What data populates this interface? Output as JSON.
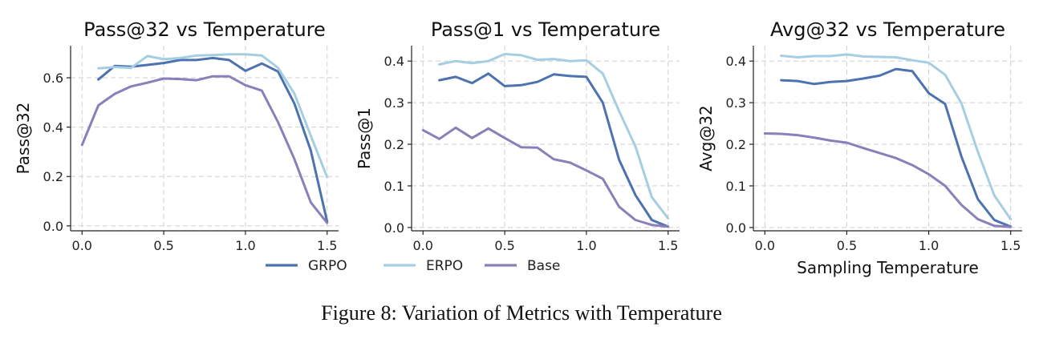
{
  "colors": {
    "GRPO": "#4c72b0",
    "ERPO": "#a6cee3",
    "Base": "#8a7fb8"
  },
  "legend": {
    "items": [
      "GRPO",
      "ERPO",
      "Base"
    ]
  },
  "caption": "Figure 8: Variation of Metrics with Temperature",
  "chart_data": [
    {
      "type": "line",
      "title": "Pass@32 vs Temperature",
      "xlabel": "",
      "ylabel": "Pass@32",
      "xlim": [
        -0.07,
        1.57
      ],
      "ylim": [
        -0.02,
        0.73
      ],
      "xticks": [
        0.0,
        0.5,
        1.0,
        1.5
      ],
      "xtick_labels": [
        "0.0",
        "0.5",
        "1.0",
        "1.5"
      ],
      "yticks": [
        0.0,
        0.2,
        0.4,
        0.6
      ],
      "ytick_labels": [
        "0.0",
        "0.2",
        "0.4",
        "0.6"
      ],
      "grid": true,
      "series": [
        {
          "name": "GRPO",
          "x": [
            0.1,
            0.2,
            0.3,
            0.4,
            0.5,
            0.6,
            0.7,
            0.8,
            0.9,
            1.0,
            1.1,
            1.2,
            1.3,
            1.4,
            1.5
          ],
          "y": [
            0.593,
            0.648,
            0.645,
            0.652,
            0.66,
            0.672,
            0.672,
            0.68,
            0.672,
            0.628,
            0.658,
            0.625,
            0.495,
            0.305,
            0.018
          ]
        },
        {
          "name": "ERPO",
          "x": [
            0.1,
            0.2,
            0.3,
            0.4,
            0.5,
            0.6,
            0.7,
            0.8,
            0.9,
            1.0,
            1.1,
            1.2,
            1.3,
            1.4,
            1.5
          ],
          "y": [
            0.638,
            0.643,
            0.64,
            0.688,
            0.675,
            0.68,
            0.69,
            0.692,
            0.695,
            0.695,
            0.69,
            0.64,
            0.535,
            0.365,
            0.198
          ]
        },
        {
          "name": "Base",
          "x": [
            0.0,
            0.1,
            0.2,
            0.3,
            0.4,
            0.5,
            0.6,
            0.7,
            0.8,
            0.9,
            1.0,
            1.1,
            1.2,
            1.3,
            1.4,
            1.5
          ],
          "y": [
            0.328,
            0.488,
            0.535,
            0.565,
            0.58,
            0.597,
            0.595,
            0.59,
            0.606,
            0.606,
            0.57,
            0.548,
            0.42,
            0.27,
            0.095,
            0.012
          ]
        }
      ]
    },
    {
      "type": "line",
      "title": "Pass@1 vs Temperature",
      "xlabel": "",
      "ylabel": "Pass@1",
      "xlim": [
        -0.07,
        1.57
      ],
      "ylim": [
        -0.008,
        0.437
      ],
      "xticks": [
        0.0,
        0.5,
        1.0,
        1.5
      ],
      "xtick_labels": [
        "0.0",
        "0.5",
        "1.0",
        "1.5"
      ],
      "yticks": [
        0.0,
        0.1,
        0.2,
        0.3,
        0.4
      ],
      "ytick_labels": [
        "0.0",
        "0.1",
        "0.2",
        "0.3",
        "0.4"
      ],
      "grid": true,
      "series": [
        {
          "name": "GRPO",
          "x": [
            0.1,
            0.2,
            0.3,
            0.4,
            0.5,
            0.6,
            0.7,
            0.8,
            0.9,
            1.0,
            1.1,
            1.2,
            1.3,
            1.4,
            1.5
          ],
          "y": [
            0.354,
            0.362,
            0.347,
            0.37,
            0.34,
            0.342,
            0.35,
            0.368,
            0.364,
            0.362,
            0.3,
            0.163,
            0.078,
            0.018,
            0.002
          ]
        },
        {
          "name": "ERPO",
          "x": [
            0.1,
            0.2,
            0.3,
            0.4,
            0.5,
            0.6,
            0.7,
            0.8,
            0.9,
            1.0,
            1.1,
            1.2,
            1.3,
            1.4,
            1.5
          ],
          "y": [
            0.392,
            0.4,
            0.395,
            0.4,
            0.417,
            0.414,
            0.403,
            0.405,
            0.4,
            0.402,
            0.37,
            0.28,
            0.195,
            0.073,
            0.022
          ]
        },
        {
          "name": "Base",
          "x": [
            0.0,
            0.1,
            0.2,
            0.3,
            0.4,
            0.5,
            0.6,
            0.7,
            0.8,
            0.9,
            1.0,
            1.1,
            1.2,
            1.3,
            1.4,
            1.5
          ],
          "y": [
            0.234,
            0.213,
            0.24,
            0.215,
            0.238,
            0.215,
            0.193,
            0.192,
            0.164,
            0.156,
            0.137,
            0.117,
            0.05,
            0.018,
            0.006,
            0.002
          ]
        }
      ]
    },
    {
      "type": "line",
      "title": "Avg@32 vs Temperature",
      "xlabel": "Sampling Temperature",
      "ylabel": "Avg@32",
      "xlim": [
        -0.07,
        1.57
      ],
      "ylim": [
        -0.008,
        0.437
      ],
      "xticks": [
        0.0,
        0.5,
        1.0,
        1.5
      ],
      "xtick_labels": [
        "0.0",
        "0.5",
        "1.0",
        "1.5"
      ],
      "yticks": [
        0.0,
        0.1,
        0.2,
        0.3,
        0.4
      ],
      "ytick_labels": [
        "0.0",
        "0.1",
        "0.2",
        "0.3",
        "0.4"
      ],
      "grid": true,
      "series": [
        {
          "name": "GRPO",
          "x": [
            0.1,
            0.2,
            0.3,
            0.4,
            0.5,
            0.6,
            0.7,
            0.8,
            0.9,
            1.0,
            1.1,
            1.2,
            1.3,
            1.4,
            1.5
          ],
          "y": [
            0.354,
            0.352,
            0.345,
            0.35,
            0.352,
            0.358,
            0.365,
            0.381,
            0.376,
            0.323,
            0.297,
            0.17,
            0.068,
            0.018,
            0.002
          ]
        },
        {
          "name": "ERPO",
          "x": [
            0.1,
            0.2,
            0.3,
            0.4,
            0.5,
            0.6,
            0.7,
            0.8,
            0.9,
            1.0,
            1.1,
            1.2,
            1.3,
            1.4,
            1.5
          ],
          "y": [
            0.413,
            0.409,
            0.412,
            0.412,
            0.416,
            0.411,
            0.41,
            0.409,
            0.402,
            0.396,
            0.367,
            0.298,
            0.182,
            0.077,
            0.02
          ]
        },
        {
          "name": "Base",
          "x": [
            0.0,
            0.1,
            0.2,
            0.3,
            0.4,
            0.5,
            0.6,
            0.7,
            0.8,
            0.9,
            1.0,
            1.1,
            1.2,
            1.3,
            1.4,
            1.5
          ],
          "y": [
            0.226,
            0.225,
            0.222,
            0.216,
            0.209,
            0.204,
            0.191,
            0.179,
            0.167,
            0.15,
            0.128,
            0.1,
            0.054,
            0.02,
            0.004,
            0.001
          ]
        }
      ]
    }
  ]
}
